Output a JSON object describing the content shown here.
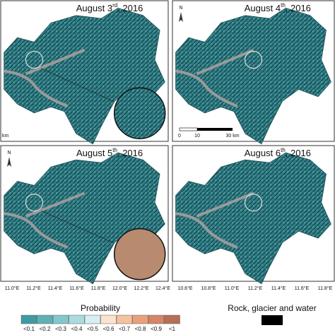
{
  "panels": [
    {
      "title": {
        "text": "August 3",
        "sup": "rd",
        "suffix": ", 2016"
      },
      "scale_bar": {
        "labels": [
          "km"
        ]
      }
    },
    {
      "title": {
        "text": "August 4",
        "sup": "th",
        "suffix": ", 2016"
      },
      "north": "N",
      "scale_bar": {
        "labels": [
          "0",
          "10",
          "30 km"
        ]
      }
    },
    {
      "title": {
        "text": "August 5",
        "sup": "th",
        "suffix": ", 2016"
      },
      "north": "N",
      "x_axis": [
        "11.0°E",
        "11.2°E",
        "11.4°E",
        "11.6°E",
        "11.8°E",
        "12.0°E",
        "12.2°E",
        "12.4°E"
      ]
    },
    {
      "title": {
        "text": "August 6",
        "sup": "th",
        "suffix": ", 2016"
      },
      "x_axis": [
        "10.6°E",
        "10.8°E",
        "11.0°E",
        "11.2°E",
        "11.4°E",
        "11.6°E",
        "11.8°E"
      ]
    }
  ],
  "legend": {
    "title": "Probability",
    "items": [
      {
        "label": "<0.1",
        "color": "#3e9aa3"
      },
      {
        "label": "<0.2",
        "color": "#5fb0b7"
      },
      {
        "label": "<0.3",
        "color": "#85c6cb"
      },
      {
        "label": "<0.4",
        "color": "#acdbdf"
      },
      {
        "label": "<0.5",
        "color": "#d6eff0"
      },
      {
        "label": "<0.6",
        "color": "#fbe3cf"
      },
      {
        "label": "<0.7",
        "color": "#f4c29f"
      },
      {
        "label": "<0.8",
        "color": "#e7a27c"
      },
      {
        "label": "<0.9",
        "color": "#d48665"
      },
      {
        "label": "<1",
        "color": "#b76e57"
      }
    ]
  },
  "rock_legend": {
    "label": "Rock, glacier and water",
    "color": "#000000"
  }
}
